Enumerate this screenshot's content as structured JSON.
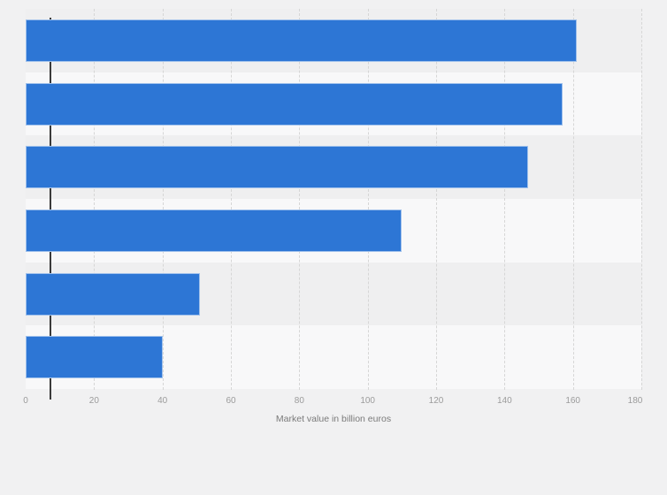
{
  "chart_data": {
    "type": "bar",
    "orientation": "horizontal",
    "title": "",
    "categories": [
      "",
      "",
      "",
      "",
      "",
      ""
    ],
    "values": [
      161,
      157,
      147,
      110,
      51,
      40
    ],
    "xlabel": "Market value in billion euros",
    "xlim": [
      0,
      180
    ],
    "xticks": [
      0,
      20,
      40,
      60,
      80,
      100,
      120,
      140,
      160,
      180
    ],
    "grid": "vertical-dashed",
    "legend": "none",
    "zebra_rows": true
  },
  "colors": {
    "bar": "#2d76d5",
    "bar_border": "rgba(255,255,255,0.55)",
    "background": "#f1f1f2",
    "stripe_odd": "#efeff0",
    "stripe_even": "#f8f8f9",
    "gridline": "#d6d6d6",
    "axis_line": "#3a3a3a",
    "tick_text": "#9b9b9b",
    "axis_title_text": "#7a7a7a"
  }
}
